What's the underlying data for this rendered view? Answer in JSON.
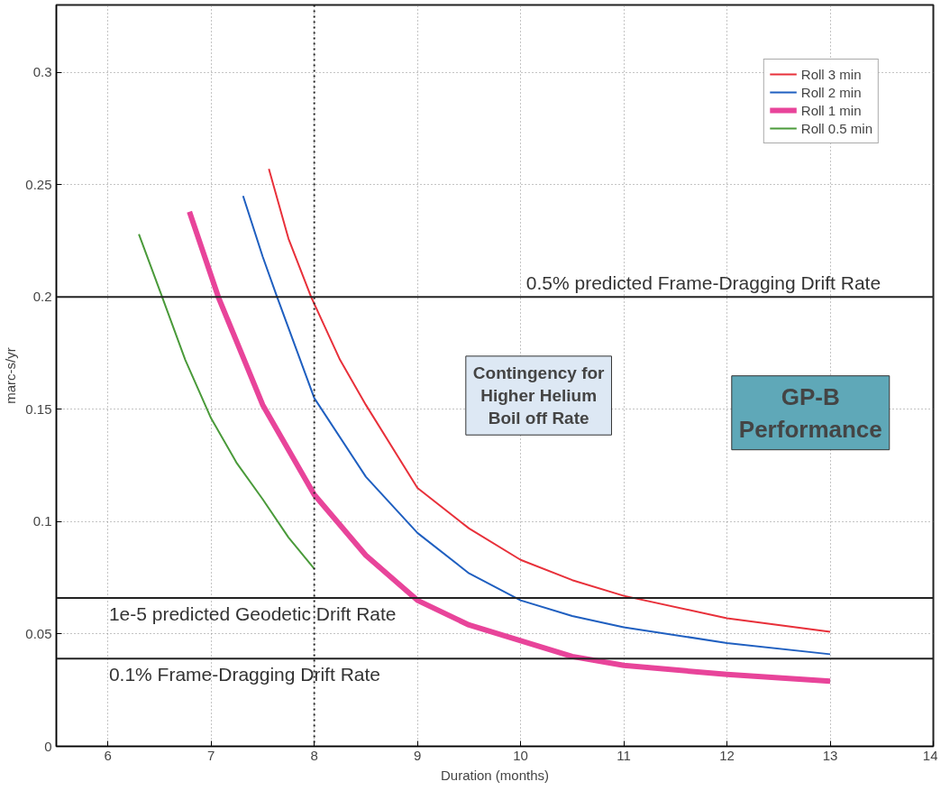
{
  "chart_data": {
    "type": "line",
    "xlabel": "Duration (months)",
    "ylabel": "marc-s/yr",
    "xlim": [
      5.5,
      14
    ],
    "ylim": [
      0,
      0.33
    ],
    "xticks": [
      6,
      7,
      8,
      9,
      10,
      11,
      12,
      13,
      14
    ],
    "yticks": [
      0,
      0.05,
      0.1,
      0.15,
      0.2,
      0.25,
      0.3
    ],
    "grid": true,
    "legend": "top right",
    "line_style": "solid",
    "marker": "none",
    "series": [
      {
        "name": "Roll 3 min",
        "color": "#e8303a",
        "x": [
          7.56,
          7.75,
          7.97,
          8.25,
          8.5,
          9,
          9.5,
          10,
          10.5,
          11,
          12,
          13
        ],
        "values": [
          0.257,
          0.226,
          0.2,
          0.172,
          0.152,
          0.115,
          0.097,
          0.083,
          0.074,
          0.067,
          0.057,
          0.051
        ]
      },
      {
        "name": "Roll 2 min",
        "color": "#1f5fc0",
        "x": [
          7.31,
          7.5,
          7.64,
          8,
          8.5,
          9,
          9.5,
          10,
          10.5,
          11,
          12,
          13
        ],
        "values": [
          0.245,
          0.218,
          0.2,
          0.155,
          0.12,
          0.095,
          0.077,
          0.065,
          0.058,
          0.053,
          0.046,
          0.041
        ]
      },
      {
        "name": "Roll 1 min",
        "color": "#e8449a",
        "x": [
          6.79,
          7.07,
          7.5,
          8,
          8.5,
          9,
          9.5,
          10,
          10.5,
          11,
          12,
          13
        ],
        "values": [
          0.238,
          0.2,
          0.152,
          0.112,
          0.085,
          0.065,
          0.054,
          0.047,
          0.04,
          0.036,
          0.032,
          0.029
        ]
      },
      {
        "name": "Roll 0.5 min",
        "color": "#4a9a3a",
        "x": [
          6.3,
          6.51,
          6.75,
          7,
          7.25,
          7.5,
          7.75,
          8
        ],
        "values": [
          0.228,
          0.202,
          0.172,
          0.146,
          0.126,
          0.11,
          0.093,
          0.079
        ]
      }
    ],
    "ref_lines": [
      {
        "axis": "y",
        "value": 0.2,
        "label": "0.5% predicted Frame-Dragging Drift Rate",
        "color": "#222222"
      },
      {
        "axis": "y",
        "value": 0.066,
        "label": "1e-5 predicted Geodetic Drift Rate",
        "color": "#222222"
      },
      {
        "axis": "y",
        "value": 0.039,
        "label": "0.1% Frame-Dragging Drift Rate",
        "color": "#222222"
      },
      {
        "axis": "x",
        "value": 8,
        "label": null,
        "color": "#222222",
        "line_style": "dotted"
      }
    ],
    "annotations": [
      "Contingency for\nHigher Helium\nBoil off Rate",
      "GP-B\nPerformance"
    ]
  }
}
